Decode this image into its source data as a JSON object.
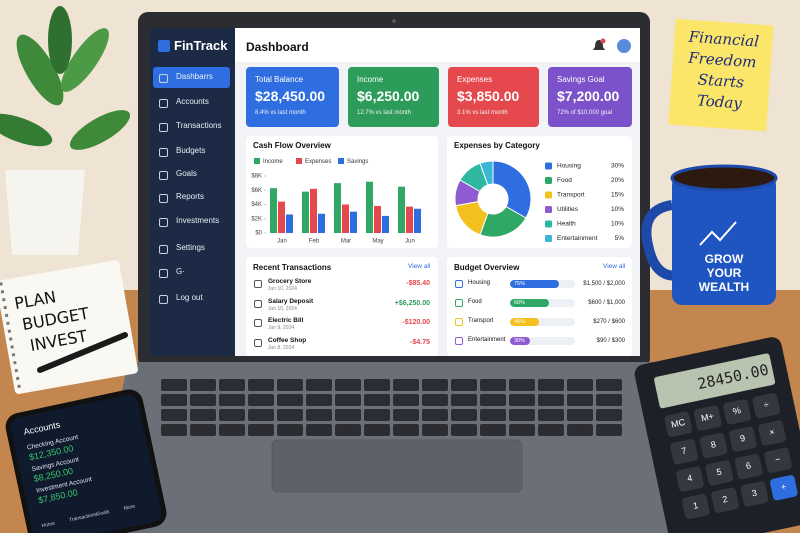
{
  "app": {
    "name": "FinTrack"
  },
  "sidebar": {
    "items": [
      "Dashbarrs",
      "Accounts",
      "Transactions",
      "Budgets",
      "Goals",
      "Reports",
      "Investments",
      "Settings",
      "G·",
      "Log out"
    ]
  },
  "header": {
    "title": "Dashboard"
  },
  "cards": [
    {
      "title": "Total Balance",
      "value": "$28,450.00",
      "change": "8.4% vs last month",
      "color": "#2e6ee0"
    },
    {
      "title": "Income",
      "value": "$6,250.00",
      "change": "12.7% vs last month",
      "color": "#2d9c5a"
    },
    {
      "title": "Expenses",
      "value": "$3,850.00",
      "change": "3.1% vs last month",
      "color": "#e5484d"
    },
    {
      "title": "Savings Goal",
      "value": "$7,200.00",
      "change": "72% of $10,000 goal",
      "color": "#7b52c9"
    }
  ],
  "chart_data": [
    {
      "type": "bar",
      "title": "Cash Flow Overview",
      "categories": [
        "Jan",
        "Feb",
        "Mar",
        "May",
        "Jun"
      ],
      "series": [
        {
          "name": "Income",
          "color": "#2fa866",
          "values": [
            6.3,
            5.8,
            7.0,
            7.2,
            6.5
          ]
        },
        {
          "name": "Expenses",
          "color": "#e5484d",
          "values": [
            4.4,
            6.2,
            4.0,
            3.8,
            3.7
          ]
        },
        {
          "name": "Savings",
          "color": "#2e6ee0",
          "values": [
            2.6,
            2.7,
            3.0,
            2.4,
            3.4
          ]
        }
      ],
      "ylim": [
        0,
        8
      ],
      "yticks": [
        {
          "value": 0,
          "label": "$0"
        },
        {
          "value": 2,
          "label": "$2K"
        },
        {
          "value": 4,
          "label": "$4K"
        },
        {
          "value": 6,
          "label": "$6K"
        },
        {
          "value": 8,
          "label": "$8K"
        }
      ],
      "grid": false
    },
    {
      "type": "pie",
      "title": "Expenses by Category",
      "categories": [
        "Housing",
        "Food",
        "Transport",
        "Utilities",
        "Health",
        "Entertainment"
      ],
      "values": [
        30,
        20,
        15,
        10,
        10,
        5
      ],
      "value_labels": [
        "30%",
        "20%",
        "15%",
        "10%",
        "10%",
        "5%"
      ],
      "colors": [
        "#2e6ee0",
        "#2fa866",
        "#f4c01e",
        "#8e5bd0",
        "#2fb8a0",
        "#3ab6d6"
      ]
    }
  ],
  "transactions": {
    "title": "Recent Transactions",
    "link": "View all",
    "rows": [
      {
        "name": "Grocery Store",
        "date": "Jun 10, 2024",
        "amount": "-$85.40"
      },
      {
        "name": "Salary Deposit",
        "date": "Jun 10, 2024",
        "amount": "+$6,250.00"
      },
      {
        "name": "Electric Bill",
        "date": "Jun 9, 2024",
        "amount": "-$120.00"
      },
      {
        "name": "Coffee Shop",
        "date": "Jun 8, 2024",
        "amount": "-$4.75"
      }
    ]
  },
  "budget": {
    "title": "Budget Overview",
    "link": "View all",
    "rows": [
      {
        "name": "Housing",
        "progress": {
          "value": 75,
          "label": "75%"
        },
        "amount": "$1,500 / $2,000",
        "color": "#2e6ee0"
      },
      {
        "name": "Food",
        "progress": {
          "value": 60,
          "label": "60%"
        },
        "amount": "$600 / $1,000",
        "color": "#2fa866"
      },
      {
        "name": "Transport",
        "progress": {
          "value": 45,
          "label": "45%"
        },
        "amount": "$270 / $600",
        "color": "#f4c01e"
      },
      {
        "name": "Entertainment",
        "progress": {
          "value": 30,
          "label": "30%"
        },
        "amount": "$90 / $300",
        "color": "#8e5bd0"
      }
    ]
  },
  "sticky_note": {
    "lines": [
      "Financial",
      "Freedom",
      "Starts",
      "Today"
    ]
  },
  "mug": {
    "lines": [
      "GROW",
      "YOUR",
      "WEALTH"
    ]
  },
  "notebook": {
    "lines": [
      "PLAN",
      "BUDGET",
      "INVEST"
    ]
  },
  "phone": {
    "title": "Accounts",
    "accounts": [
      {
        "name": "Checking Account",
        "balance": "$12,350.00"
      },
      {
        "name": "Savings Account",
        "balance": "$8,250.00"
      },
      {
        "name": "Investment Account",
        "balance": "$7,850.00"
      }
    ],
    "nav": [
      "Home",
      "Transactions",
      "Goals",
      "More"
    ]
  },
  "calculator": {
    "display": "28450.00",
    "keys": [
      "MC",
      "M+",
      "%",
      "÷",
      "7",
      "8",
      "9",
      "×",
      "4",
      "5",
      "6",
      "−",
      "1",
      "2",
      "3",
      "+"
    ]
  }
}
